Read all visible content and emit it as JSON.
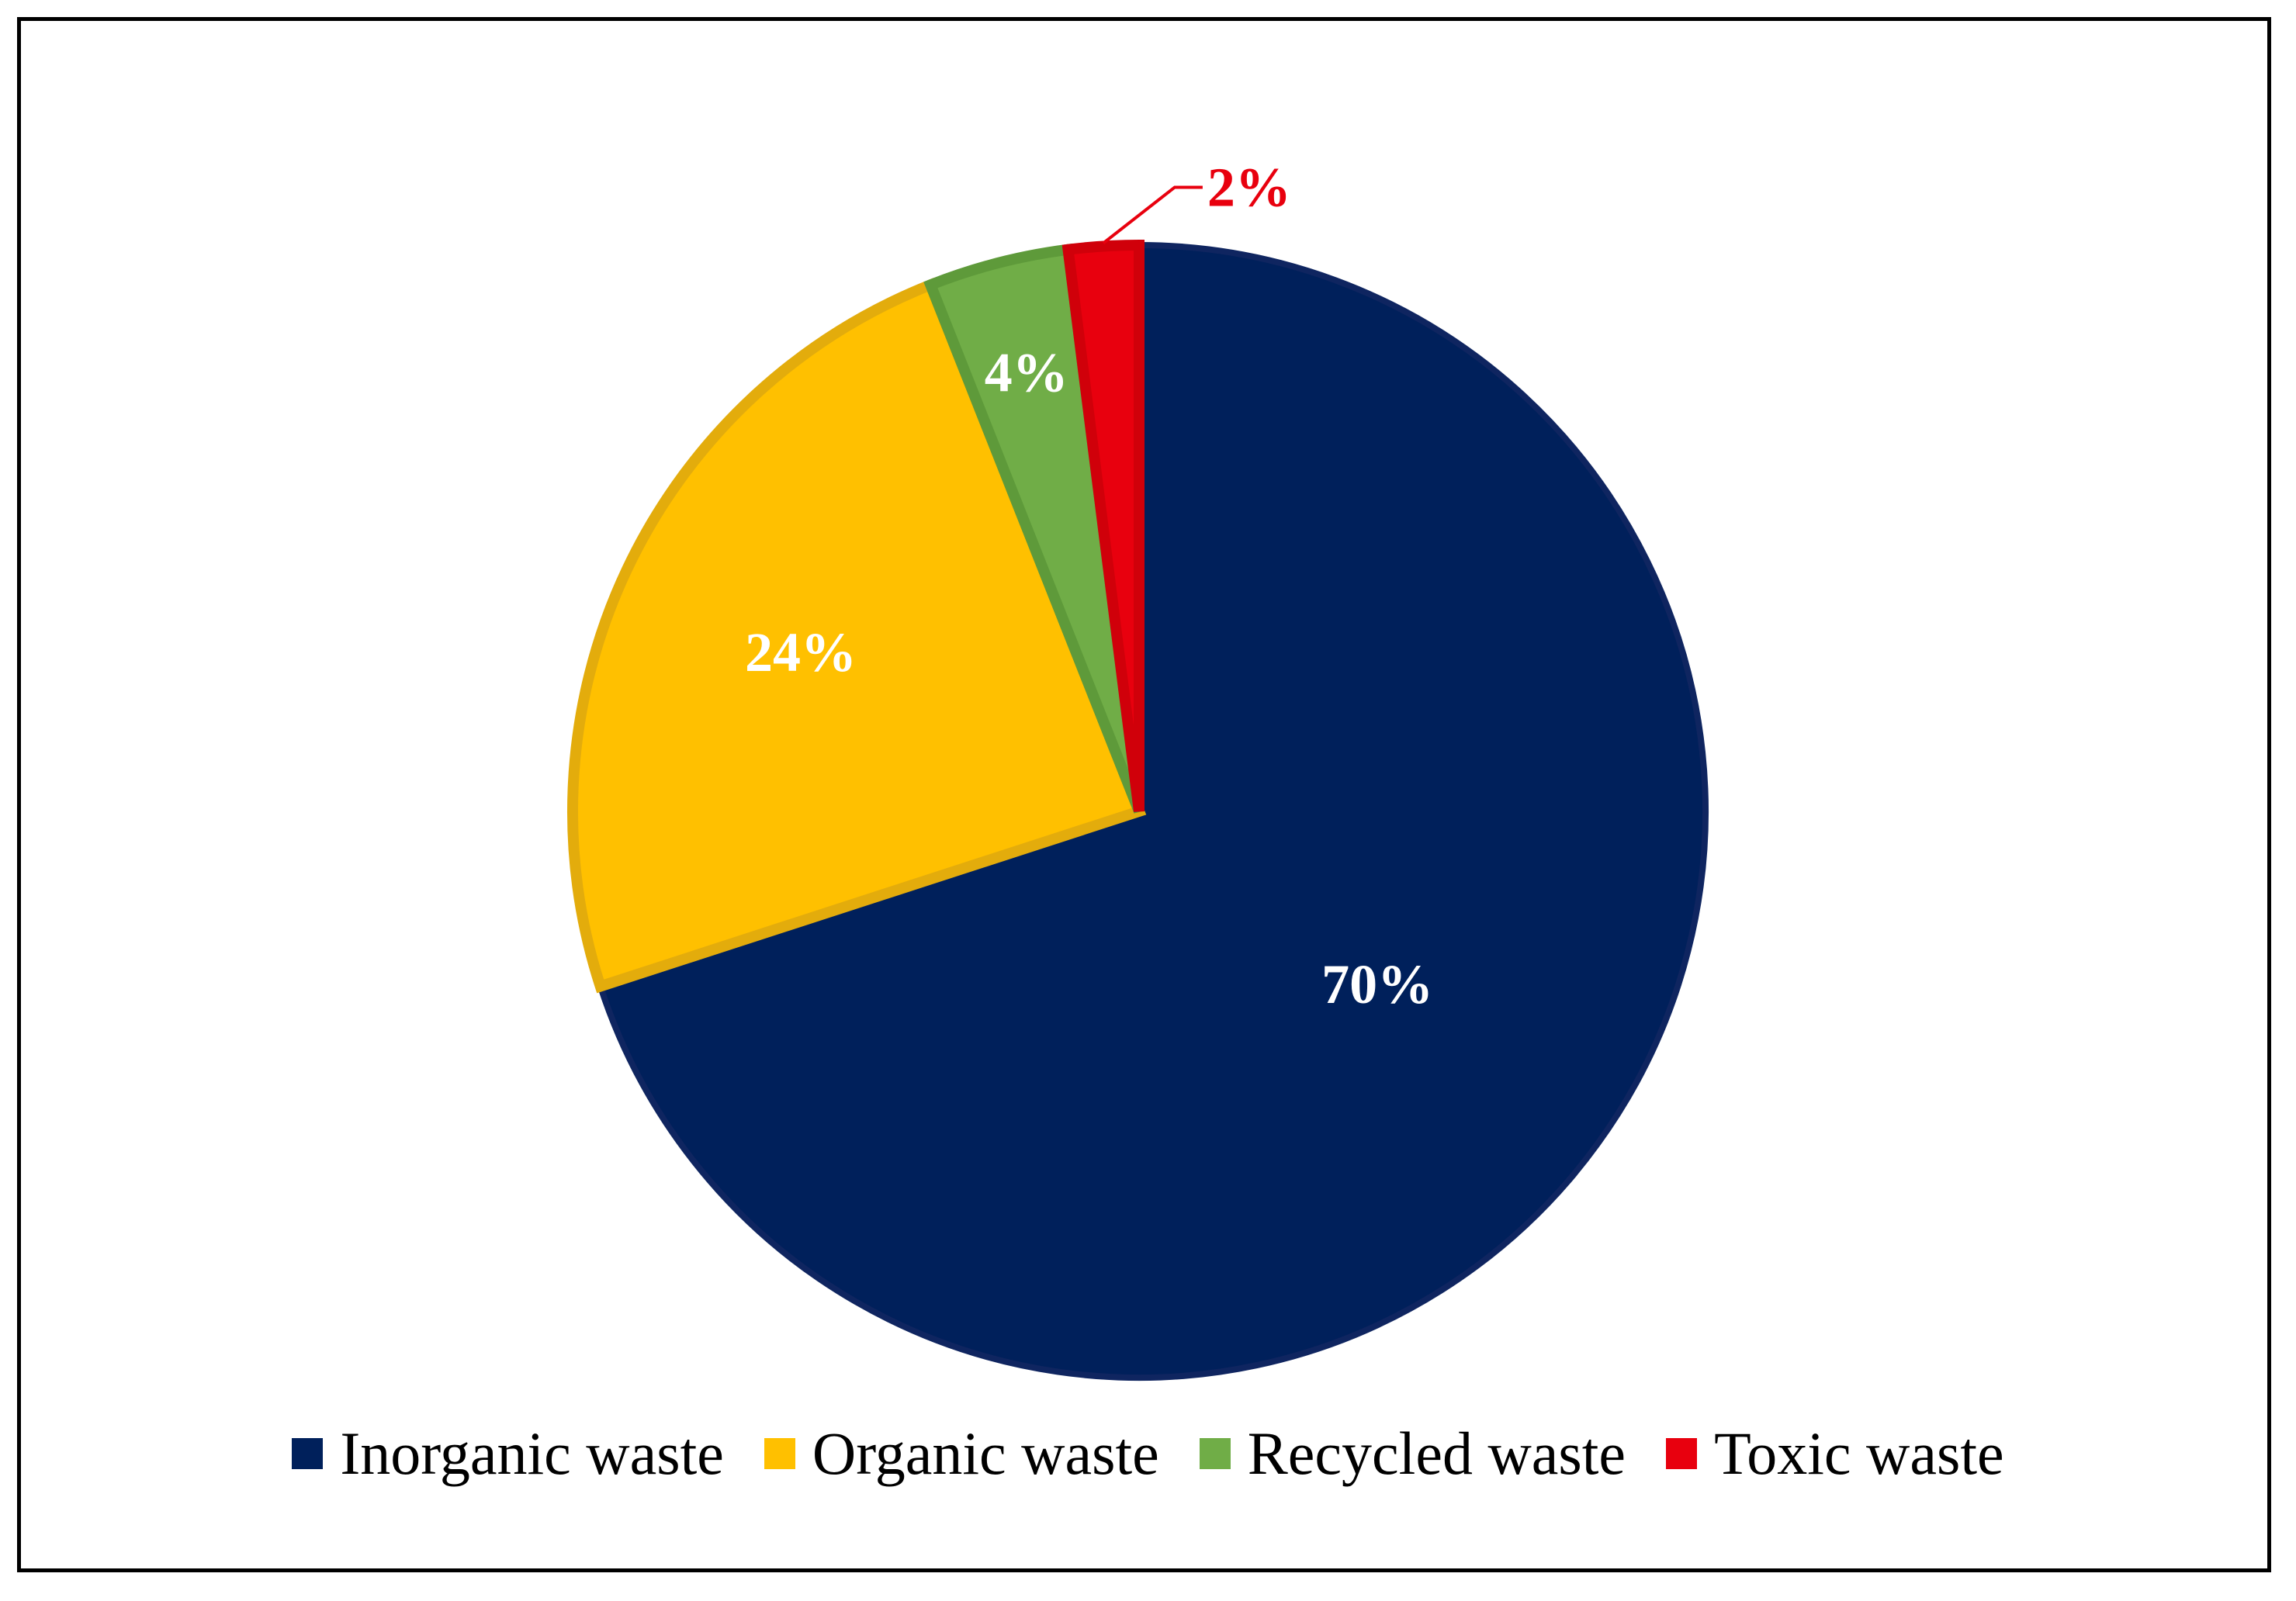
{
  "chart_data": {
    "type": "pie",
    "title": "",
    "start_angle_deg": 0,
    "direction": "clockwise",
    "slices": [
      {
        "name": "Inorganic waste",
        "value": 70,
        "label": "70%",
        "color": "#00205B",
        "border": "#0F2560",
        "label_color": "#FFFFFF"
      },
      {
        "name": "Organic waste",
        "value": 24,
        "label": "24%",
        "color": "#FFC000",
        "border": "#E3AC0C",
        "label_color": "#FFFFFF"
      },
      {
        "name": "Recycled waste",
        "value": 4,
        "label": "4%",
        "color": "#70AD47",
        "border": "#5E9A3A",
        "label_color": "#FFFFFF"
      },
      {
        "name": "Toxic waste",
        "value": 2,
        "label": "2%",
        "color": "#E8000E",
        "border": "#D0000A",
        "label_color": "#E8000E"
      }
    ],
    "legend_position": "bottom"
  }
}
